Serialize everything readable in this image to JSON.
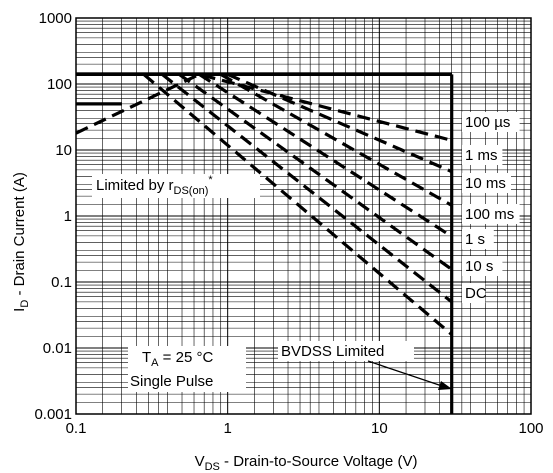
{
  "chart_data": {
    "type": "line",
    "x_scale": "log",
    "y_scale": "log",
    "xlim": [
      0.1,
      100
    ],
    "ylim": [
      0.001,
      1000
    ],
    "grid": true,
    "x_ticks": [
      "0.1",
      "1",
      "10",
      "100"
    ],
    "y_ticks": [
      "0.001",
      "0.01",
      "0.1",
      "1",
      "10",
      "100",
      "1000"
    ],
    "xlabel": {
      "sym": "V",
      "sub": "DS",
      "rest": " - Drain-to-Source Voltage (V)"
    },
    "ylabel": {
      "sym": "I",
      "sub": "D",
      "rest": " - Drain Current (A)"
    },
    "limit_lines": [
      {
        "name": "current-limit",
        "points": [
          [
            0.1,
            140
          ],
          [
            30,
            140
          ]
        ]
      },
      {
        "name": "bvdss-limit",
        "points": [
          [
            30,
            140
          ],
          [
            30,
            0.001
          ]
        ]
      },
      {
        "name": "package-limit",
        "points": [
          [
            0.1,
            50
          ],
          [
            0.2,
            50
          ]
        ]
      }
    ],
    "series": [
      {
        "name": "100 µs",
        "points": [
          [
            0.1,
            18
          ],
          [
            0.65,
            140
          ],
          [
            30,
            14
          ]
        ]
      },
      {
        "name": "1 ms",
        "points": [
          [
            1,
            140
          ],
          [
            30,
            4.7
          ]
        ]
      },
      {
        "name": "10 ms",
        "points": [
          [
            0.9,
            140
          ],
          [
            30,
            1.45
          ]
        ]
      },
      {
        "name": "100 ms",
        "points": [
          [
            0.65,
            140
          ],
          [
            30,
            0.49
          ]
        ]
      },
      {
        "name": "1 s",
        "points": [
          [
            0.48,
            140
          ],
          [
            30,
            0.155
          ]
        ]
      },
      {
        "name": "10 s",
        "points": [
          [
            0.37,
            140
          ],
          [
            30,
            0.05
          ]
        ]
      },
      {
        "name": "DC",
        "points": [
          [
            0.28,
            140
          ],
          [
            30,
            0.016
          ]
        ]
      }
    ],
    "annotations": {
      "rds_limit": {
        "pre": "Limited by r",
        "sub": "DS(on)",
        "sup": "*"
      },
      "ta_line": {
        "pre": "T",
        "sub": "A",
        "rest": " = 25 °C"
      },
      "pulse_line": "Single Pulse",
      "bvdss": "BVDSS Limited"
    }
  }
}
